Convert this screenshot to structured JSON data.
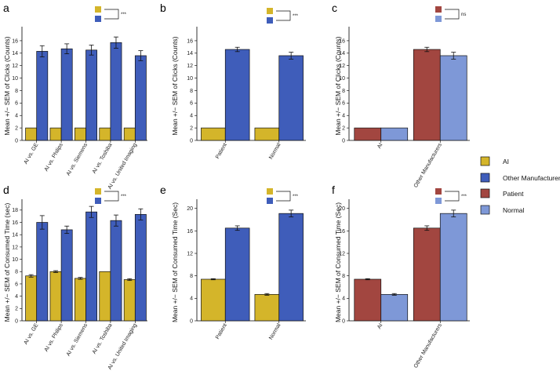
{
  "colors": {
    "AI": "#d4b52a",
    "Other Manufacturers": "#3f5dba",
    "Patient": "#a24640",
    "Normal": "#7e98d7"
  },
  "legend": {
    "items": [
      {
        "label": "AI",
        "color": "#d4b52a"
      },
      {
        "label": "Other Manufacturers",
        "color": "#3f5dba"
      },
      {
        "label": "Patient",
        "color": "#a24640"
      },
      {
        "label": "Normal",
        "color": "#7e98d7"
      }
    ]
  },
  "chart_data": [
    {
      "panel": "a",
      "type": "bar",
      "ylabel": "Mean +/− SEM of Clicks (Counts)",
      "ylim": [
        0,
        17.5
      ],
      "yticks": [
        0,
        2,
        4,
        6,
        8,
        10,
        12,
        14,
        16
      ],
      "categories": [
        "AI vs. GE",
        "AI vs. Philips",
        "AI vs. Siemens",
        "AI vs. Toshiba",
        "AI vs. United Imaging"
      ],
      "series": [
        {
          "name": "AI",
          "color": "#d4b52a",
          "values": [
            2,
            2,
            2,
            2,
            2
          ],
          "errors": [
            0,
            0,
            0,
            0,
            0
          ]
        },
        {
          "name": "Other Manufacturers",
          "color": "#3f5dba",
          "values": [
            14.3,
            14.7,
            14.5,
            15.7,
            13.6
          ],
          "errors": [
            0.9,
            0.8,
            0.8,
            0.9,
            0.8
          ]
        }
      ],
      "significance": {
        "text": "***",
        "colors": [
          "#d4b52a",
          "#3f5dba"
        ]
      }
    },
    {
      "panel": "b",
      "type": "bar",
      "ylabel": "Mean +/− SEM of Clicks (Counts)",
      "ylim": [
        0,
        17.5
      ],
      "yticks": [
        0,
        2,
        4,
        6,
        8,
        10,
        12,
        14,
        16
      ],
      "categories": [
        "Patient",
        "Normal"
      ],
      "series": [
        {
          "name": "AI",
          "color": "#d4b52a",
          "values": [
            2,
            2
          ],
          "errors": [
            0,
            0
          ]
        },
        {
          "name": "Other Manufacturers",
          "color": "#3f5dba",
          "values": [
            14.6,
            13.6
          ],
          "errors": [
            0.35,
            0.55
          ]
        }
      ],
      "significance": {
        "text": "***",
        "colors": [
          "#d4b52a",
          "#3f5dba"
        ]
      }
    },
    {
      "panel": "c",
      "type": "bar",
      "ylabel": "Mean +/− SEM of Clicks (Counts)",
      "ylim": [
        0,
        17.5
      ],
      "yticks": [
        0,
        2,
        4,
        6,
        8,
        10,
        12,
        14,
        16
      ],
      "categories": [
        "AI",
        "Other Manufacturers"
      ],
      "series": [
        {
          "name": "Patient",
          "color": "#a24640",
          "values": [
            2,
            14.6
          ],
          "errors": [
            0,
            0.35
          ]
        },
        {
          "name": "Normal",
          "color": "#7e98d7",
          "values": [
            2,
            13.6
          ],
          "errors": [
            0,
            0.55
          ]
        }
      ],
      "significance": {
        "text": "ns",
        "colors": [
          "#a24640",
          "#7e98d7"
        ]
      }
    },
    {
      "panel": "d",
      "type": "bar",
      "ylabel": "Mean +/− SEM of Consumed Time (sec)",
      "ylim": [
        0,
        19
      ],
      "yticks": [
        0,
        2,
        4,
        6,
        8,
        10,
        12,
        14,
        16,
        18
      ],
      "categories": [
        "AI vs. GE",
        "AI vs. Philips",
        "AI vs. Siemens",
        "AI vs. Toshiba",
        "AI vs. United Imaging"
      ],
      "series": [
        {
          "name": "AI",
          "color": "#d4b52a",
          "values": [
            7.3,
            8.0,
            6.9,
            8.0,
            6.7
          ],
          "errors": [
            0.2,
            0.15,
            0.15,
            0.0,
            0.15
          ]
        },
        {
          "name": "Other Manufacturers",
          "color": "#3f5dba",
          "values": [
            16.0,
            14.8,
            17.7,
            16.3,
            17.3
          ],
          "errors": [
            1.1,
            0.6,
            0.9,
            0.9,
            0.9
          ]
        }
      ],
      "significance": {
        "text": "***",
        "colors": [
          "#d4b52a",
          "#3f5dba"
        ]
      }
    },
    {
      "panel": "e",
      "type": "bar",
      "ylabel": "Mean +/− SEM of Consumed Time (Sec)",
      "ylim": [
        0,
        20.8
      ],
      "yticks": [
        0,
        4,
        8,
        12,
        16,
        20
      ],
      "categories": [
        "Patient",
        "Normal"
      ],
      "series": [
        {
          "name": "AI",
          "color": "#d4b52a",
          "values": [
            7.4,
            4.7
          ],
          "errors": [
            0.1,
            0.15
          ]
        },
        {
          "name": "Other Manufacturers",
          "color": "#3f5dba",
          "values": [
            16.5,
            19.1
          ],
          "errors": [
            0.4,
            0.6
          ]
        }
      ],
      "significance": {
        "text": "***",
        "colors": [
          "#d4b52a",
          "#3f5dba"
        ]
      }
    },
    {
      "panel": "f",
      "type": "bar",
      "ylabel": "Mean +/− SEM of Consumed Time (Sec)",
      "ylim": [
        0,
        20.8
      ],
      "yticks": [
        0,
        4,
        8,
        12,
        16,
        20
      ],
      "categories": [
        "AI",
        "Other Manufacturers"
      ],
      "series": [
        {
          "name": "Patient",
          "color": "#a24640",
          "values": [
            7.4,
            16.5
          ],
          "errors": [
            0.1,
            0.4
          ]
        },
        {
          "name": "Normal",
          "color": "#7e98d7",
          "values": [
            4.7,
            19.1
          ],
          "errors": [
            0.15,
            0.6
          ]
        }
      ],
      "significance": {
        "text": "***",
        "colors": [
          "#a24640",
          "#7e98d7"
        ]
      }
    }
  ]
}
